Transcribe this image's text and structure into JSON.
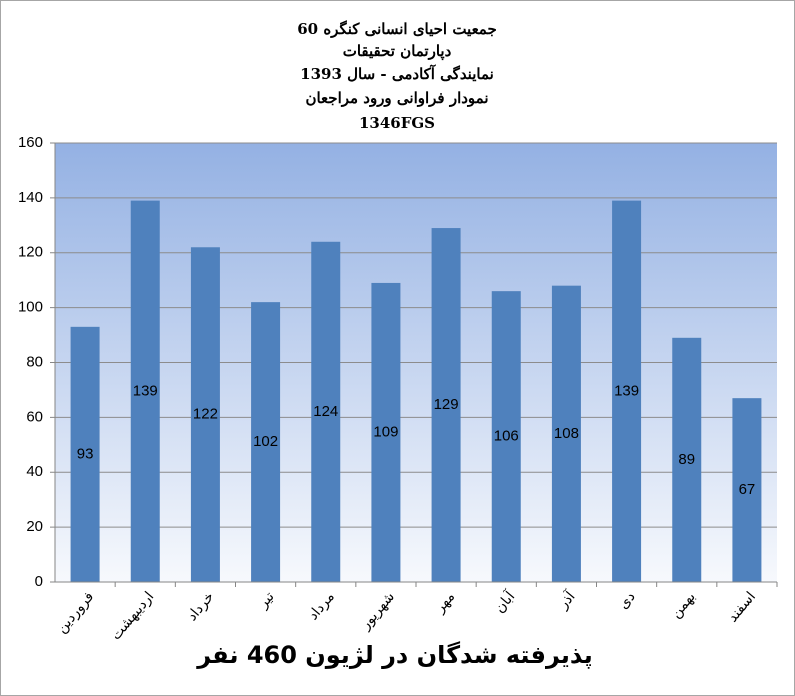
{
  "chart_data": {
    "type": "bar",
    "title": [
      "جمعیت احیای انسانی کنگره 60",
      "دپارتمان تحقیقات",
      "نمایندگی آکادمی - سال 1393",
      "نمودار فراوانی ورود مراجعان",
      "1346FGS"
    ],
    "x_label": "پذیرفته شدگان در لژیون 460 نفر",
    "categories": [
      "فروردین",
      "اردیبهشت",
      "خرداد",
      "تیر",
      "مرداد",
      "شهریور",
      "مهر",
      "آبان",
      "آذر",
      "دی",
      "بهمن",
      "اسفند"
    ],
    "values": [
      93,
      139,
      122,
      102,
      124,
      109,
      129,
      106,
      108,
      139,
      89,
      67
    ],
    "color": "#4f81bd",
    "ylim": [
      0,
      160
    ],
    "yticks": [
      0,
      20,
      40,
      60,
      80,
      100,
      120,
      140,
      160
    ],
    "grid": true
  }
}
